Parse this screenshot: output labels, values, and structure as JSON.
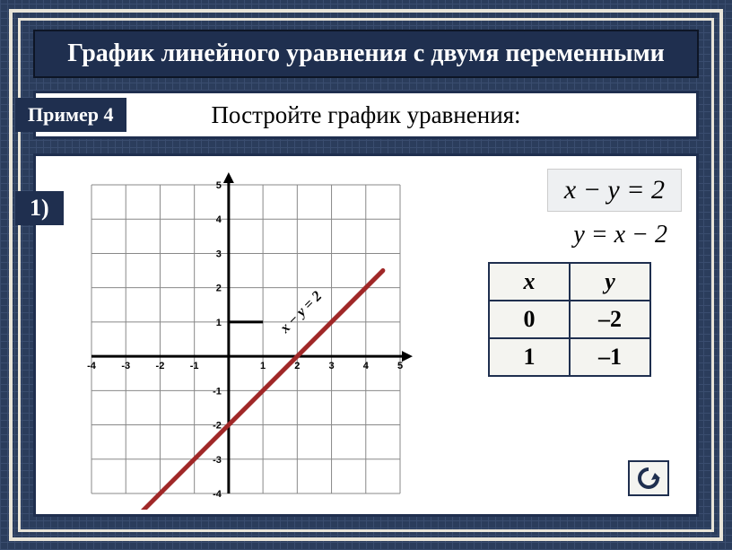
{
  "title": "График линейного уравнения с двумя переменными",
  "example_badge": "Пример 4",
  "subtitle": "Постройте график уравнения:",
  "step_badge": "1)",
  "eq1": "x − y = 2",
  "eq2": "y = x − 2",
  "table": {
    "headers": [
      "x",
      "y"
    ],
    "rows": [
      [
        "0",
        "–2"
      ],
      [
        "1",
        "–1"
      ]
    ]
  },
  "chart": {
    "type": "line",
    "xlim": [
      -4,
      5
    ],
    "ylim": [
      -4,
      5
    ],
    "xtick_step": 1,
    "ytick_step": 1,
    "y_highlight_ref": 1,
    "grid_color": "#888888",
    "grid_width": 1,
    "axis_color": "#000000",
    "axis_width": 3,
    "background_color": "#ffffff",
    "line": {
      "points": [
        [
          -2.5,
          -4.5
        ],
        [
          4.5,
          2.5
        ]
      ],
      "color": "#a02828",
      "width": 5,
      "label": "x − y = 2",
      "label_pos": [
        2.2,
        1.2
      ],
      "label_angle": -45
    },
    "tick_fontsize": 11,
    "tick_fontweight": "bold"
  },
  "colors": {
    "frame": "#e8e4d8",
    "panel_border": "#1f2f4f",
    "page_bg": "#2b3d5c"
  }
}
